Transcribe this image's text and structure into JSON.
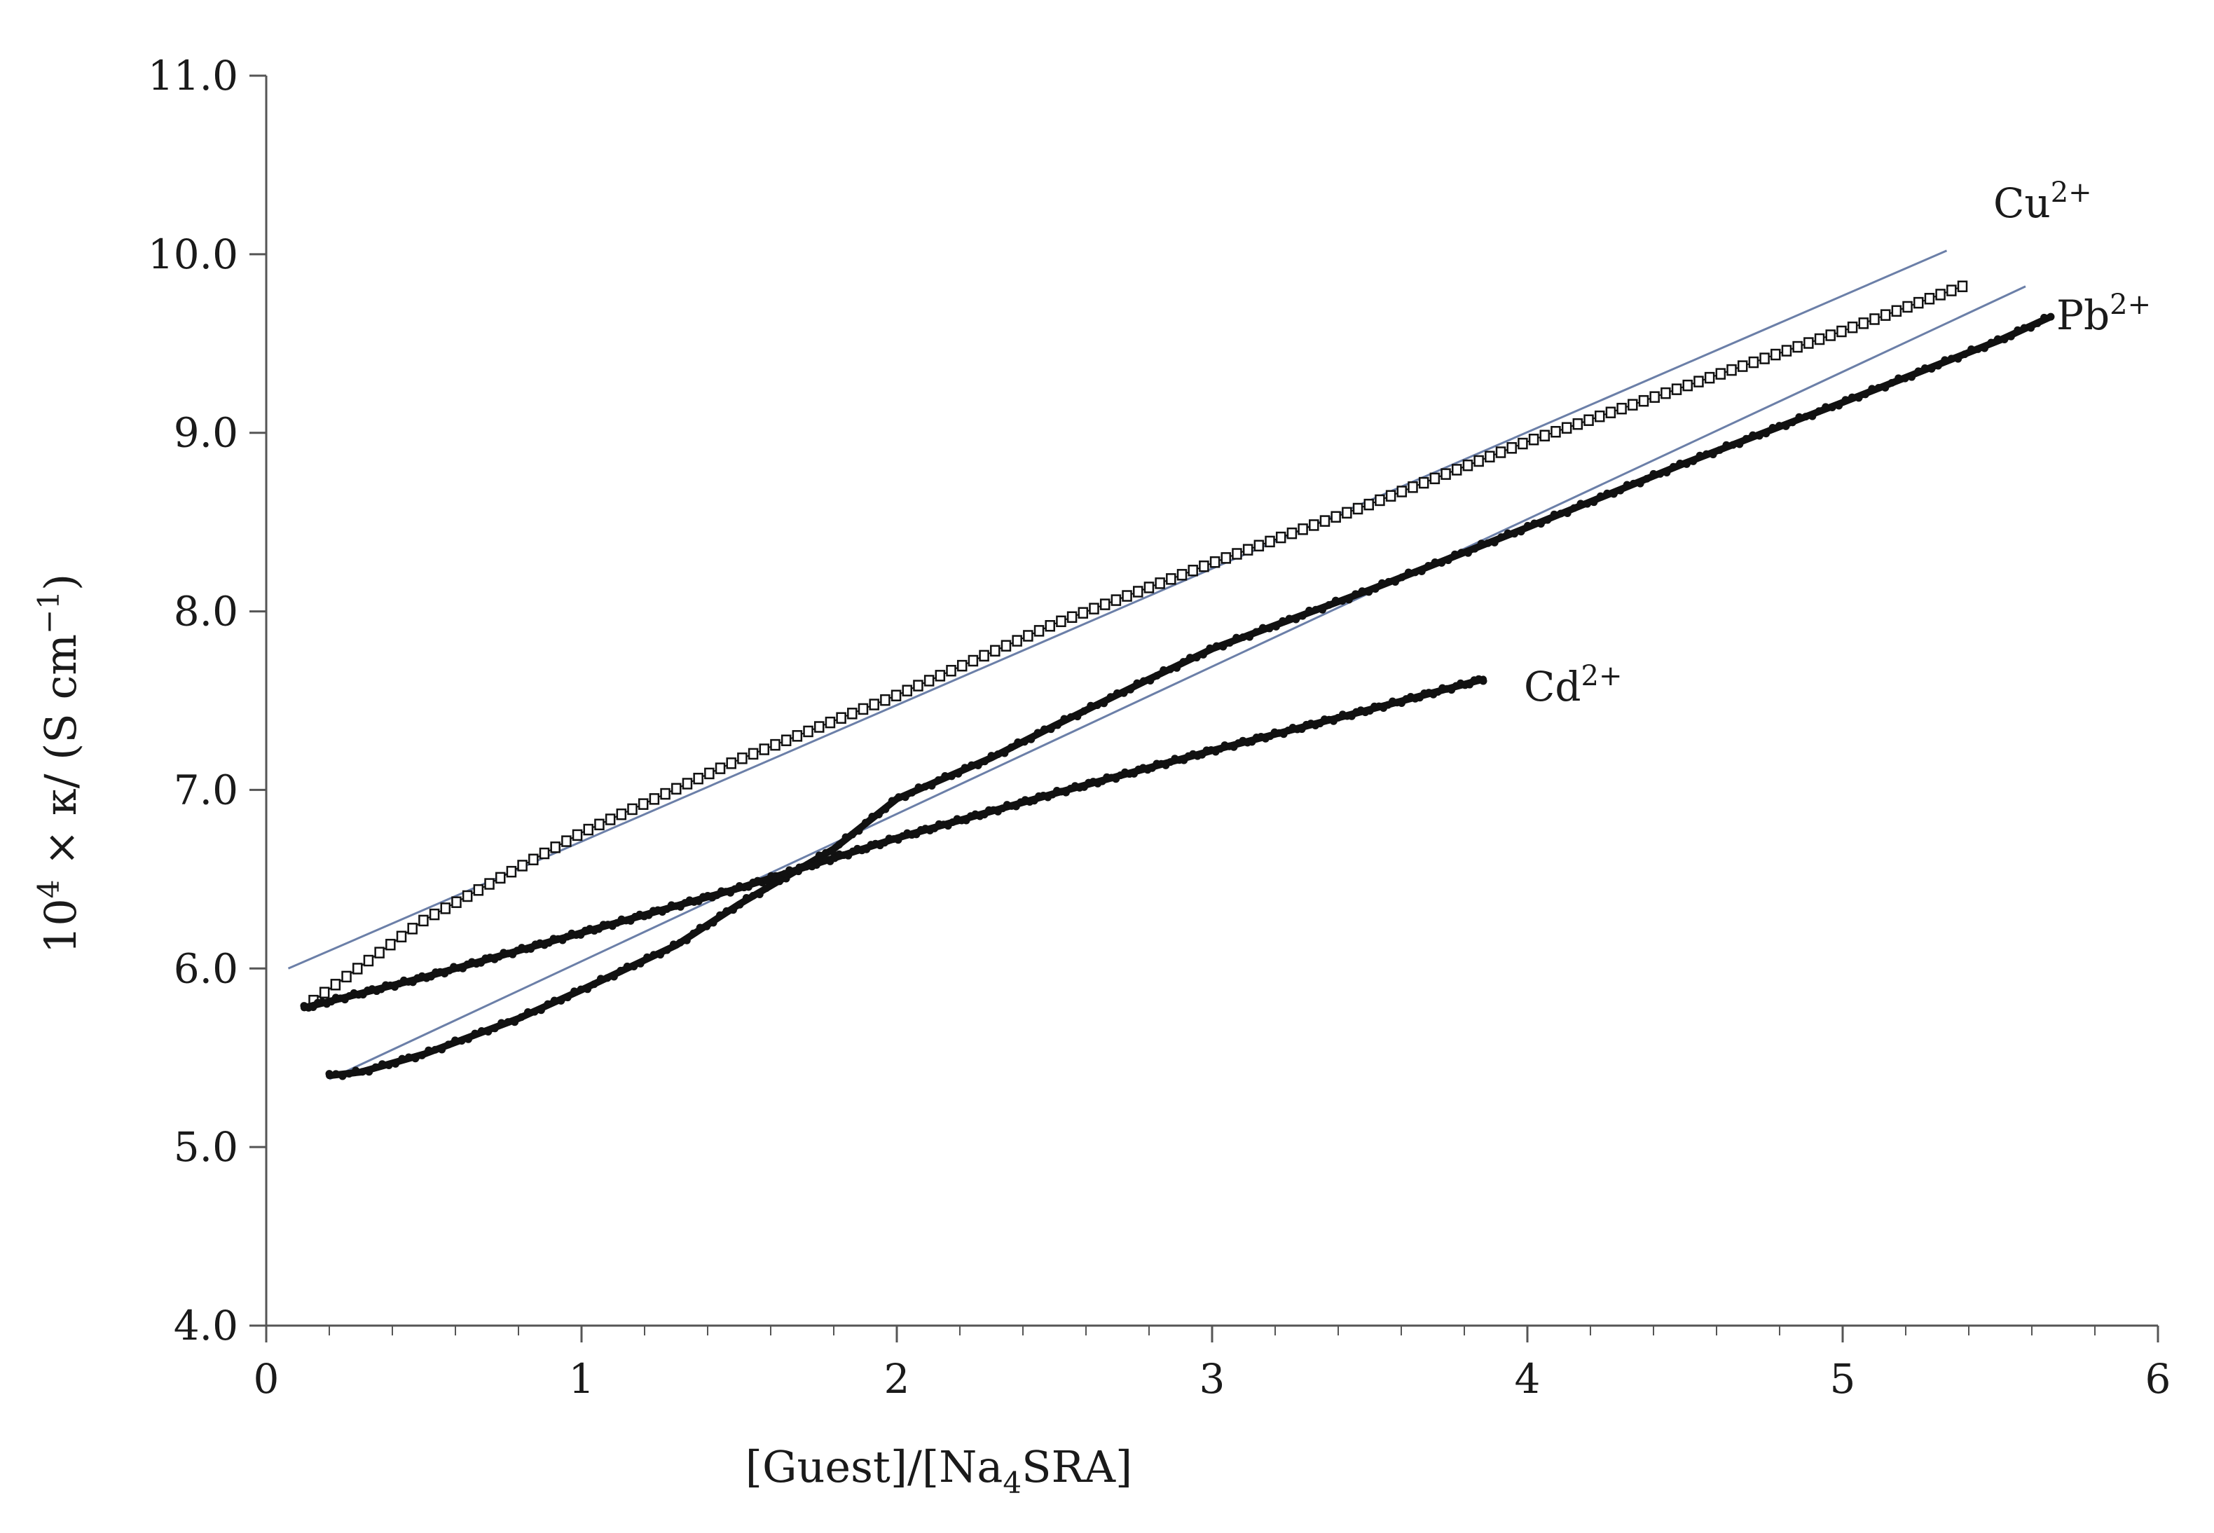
{
  "chart_data": {
    "type": "scatter",
    "xlabel": "[Guest]/[Na4SRA]",
    "xlabel_parts": {
      "pre": "[Guest]/[Na",
      "sub": "4",
      "post": "SRA]"
    },
    "ylabel": "10^4 × κ/ (S cm^-1)",
    "ylabel_parts": {
      "base1": "10",
      "sup1": "4",
      "mid": " × κ/ (S cm",
      "sup2": "−1",
      "post": ")"
    },
    "xlim": [
      0,
      6
    ],
    "ylim": [
      4.0,
      11.0
    ],
    "x_ticks": [
      0,
      1,
      2,
      3,
      4,
      5,
      6
    ],
    "x_tick_labels": [
      "0",
      "1",
      "2",
      "3",
      "4",
      "5",
      "6"
    ],
    "x_minor_step": 0.2,
    "y_ticks": [
      4.0,
      5.0,
      6.0,
      7.0,
      8.0,
      9.0,
      10.0,
      11.0
    ],
    "y_tick_labels": [
      "4.0",
      "5.0",
      "6.0",
      "7.0",
      "8.0",
      "9.0",
      "10.0",
      "11.0"
    ],
    "grid": false,
    "legend": "none",
    "series": [
      {
        "name": "Cu2+",
        "label_base": "Cu",
        "label_sup": "2+",
        "marker": "open-square",
        "color": "#111111",
        "x": [
          0.15,
          0.5,
          1.0,
          1.5,
          2.0,
          2.5,
          3.0,
          3.5,
          4.0,
          4.5,
          5.0,
          5.38
        ],
        "y": [
          5.82,
          6.27,
          6.76,
          7.17,
          7.53,
          7.93,
          8.27,
          8.6,
          8.95,
          9.26,
          9.57,
          9.82
        ]
      },
      {
        "name": "Pb2+",
        "label_base": "Pb",
        "label_sup": "2+",
        "marker": "filled-dot",
        "color": "#111111",
        "x": [
          0.2,
          0.3,
          0.5,
          0.8,
          1.0,
          1.3,
          1.5,
          1.8,
          2.0,
          2.3,
          2.5,
          2.8,
          3.0,
          3.5,
          4.0,
          4.5,
          5.0,
          5.5,
          5.66
        ],
        "y": [
          5.4,
          5.42,
          5.52,
          5.72,
          5.88,
          6.13,
          6.36,
          6.67,
          6.95,
          7.18,
          7.36,
          7.62,
          7.79,
          8.12,
          8.47,
          8.83,
          9.17,
          9.52,
          9.65
        ]
      },
      {
        "name": "Cd2+",
        "label_base": "Cd",
        "label_sup": "2+",
        "marker": "filled-dot",
        "color": "#111111",
        "x": [
          0.12,
          0.5,
          1.0,
          1.5,
          2.0,
          2.5,
          3.0,
          3.5,
          3.86
        ],
        "y": [
          5.78,
          5.95,
          6.2,
          6.45,
          6.73,
          6.98,
          7.22,
          7.45,
          7.62
        ]
      }
    ],
    "fit_lines": [
      {
        "color": "#6b7fa8",
        "x": [
          0.07,
          5.33
        ],
        "y": [
          6.0,
          10.02
        ]
      },
      {
        "color": "#6b7fa8",
        "x": [
          0.2,
          5.58
        ],
        "y": [
          5.38,
          9.82
        ]
      }
    ]
  }
}
